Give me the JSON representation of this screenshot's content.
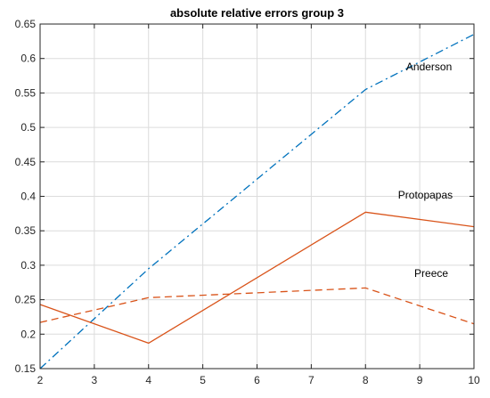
{
  "chart_data": {
    "type": "line",
    "title": "absolute relative errors group 3",
    "xlabel": "",
    "ylabel": "",
    "xlim": [
      2,
      10
    ],
    "ylim": [
      0.15,
      0.65
    ],
    "grid": true,
    "x_ticks": [
      "2",
      "3",
      "4",
      "5",
      "6",
      "7",
      "8",
      "9",
      "10"
    ],
    "y_ticks": [
      "0.15",
      "0.2",
      "0.25",
      "0.3",
      "0.35",
      "0.4",
      "0.45",
      "0.5",
      "0.55",
      "0.6",
      "0.65"
    ],
    "series": [
      {
        "name": "Anderson",
        "color": "#0072BD",
        "style": "dash-dot",
        "x": [
          2,
          4,
          8,
          10
        ],
        "y": [
          0.15,
          0.295,
          0.555,
          0.635
        ]
      },
      {
        "name": "Protopapas",
        "color": "#D95319",
        "style": "solid",
        "x": [
          2,
          4,
          8,
          10
        ],
        "y": [
          0.243,
          0.187,
          0.377,
          0.356
        ]
      },
      {
        "name": "Preece",
        "color": "#D95319",
        "style": "dashed",
        "x": [
          2,
          4,
          8,
          10
        ],
        "y": [
          0.217,
          0.253,
          0.267,
          0.215
        ]
      }
    ]
  }
}
